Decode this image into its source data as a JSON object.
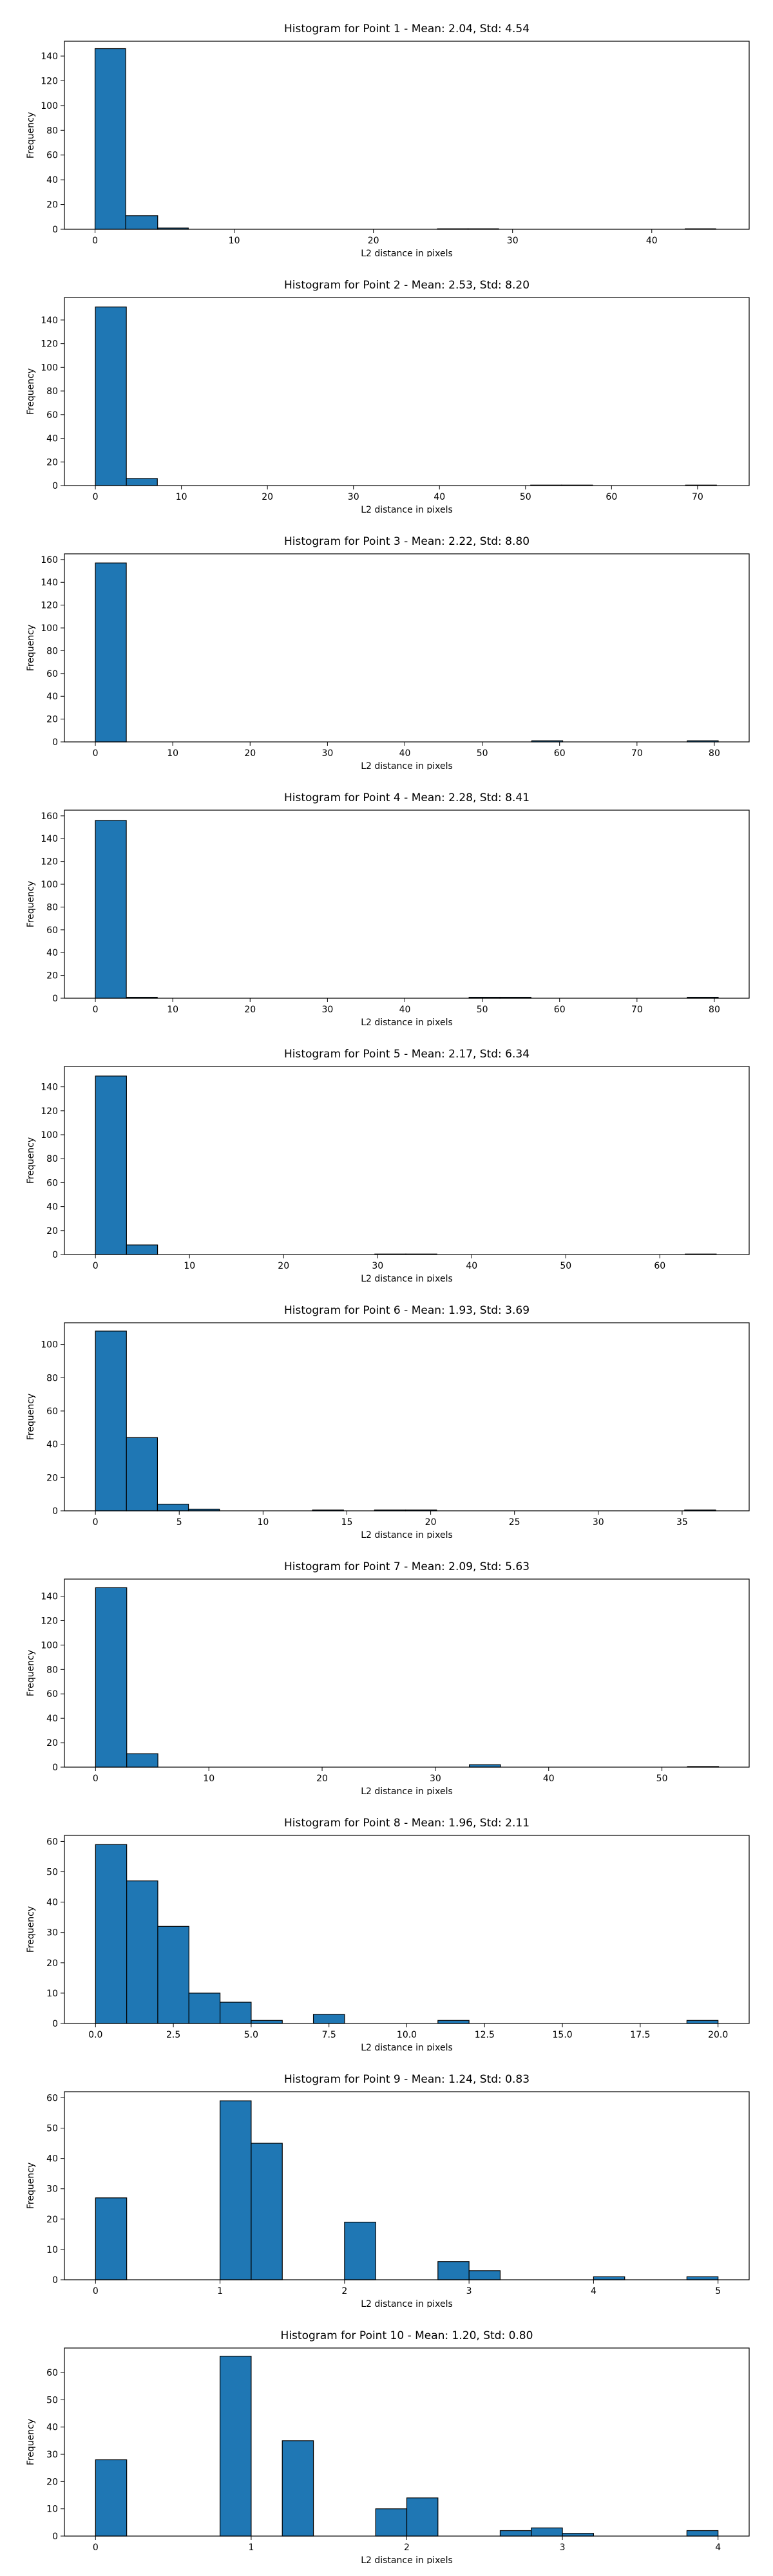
{
  "style": {
    "bar_color": "#1f77b4",
    "edge_color": "#000000"
  },
  "chart_data": [
    {
      "type": "bar",
      "title": "Histogram for Point 1 - Mean: 2.04, Std: 4.54",
      "xlabel": "L2 distance in pixels",
      "ylabel": "Frequency",
      "xlim": [
        -2.2,
        47.0
      ],
      "ylim": [
        0,
        152
      ],
      "xticks": [
        0,
        10,
        20,
        30,
        40
      ],
      "yticks": [
        0,
        20,
        40,
        60,
        80,
        100,
        120,
        140
      ],
      "bins": [
        {
          "x0": 0.0,
          "x1": 2.2,
          "count": 146
        },
        {
          "x0": 2.2,
          "x1": 4.5,
          "count": 11
        },
        {
          "x0": 4.5,
          "x1": 6.7,
          "count": 1
        },
        {
          "x0": 24.6,
          "x1": 26.8,
          "count": 0.4
        },
        {
          "x0": 26.8,
          "x1": 29.0,
          "count": 0.4
        },
        {
          "x0": 42.4,
          "x1": 44.6,
          "count": 0.4
        }
      ]
    },
    {
      "type": "bar",
      "title": "Histogram for Point 2 - Mean: 2.53, Std: 8.20",
      "xlabel": "L2 distance in pixels",
      "ylabel": "Frequency",
      "xlim": [
        -3.6,
        76.0
      ],
      "ylim": [
        0,
        159
      ],
      "xticks": [
        0,
        10,
        20,
        30,
        40,
        50,
        60,
        70
      ],
      "yticks": [
        0,
        20,
        40,
        60,
        80,
        100,
        120,
        140
      ],
      "bins": [
        {
          "x0": 0.0,
          "x1": 3.6,
          "count": 151
        },
        {
          "x0": 3.6,
          "x1": 7.2,
          "count": 6
        },
        {
          "x0": 50.6,
          "x1": 54.2,
          "count": 0.4
        },
        {
          "x0": 54.2,
          "x1": 57.8,
          "count": 0.4
        },
        {
          "x0": 68.6,
          "x1": 72.2,
          "count": 0.4
        }
      ]
    },
    {
      "type": "bar",
      "title": "Histogram for Point 3 - Mean: 2.22, Std: 8.80",
      "xlabel": "L2 distance in pixels",
      "ylabel": "Frequency",
      "xlim": [
        -4.0,
        84.5
      ],
      "ylim": [
        0,
        165
      ],
      "xticks": [
        0,
        10,
        20,
        30,
        40,
        50,
        60,
        70,
        80
      ],
      "yticks": [
        0,
        20,
        40,
        60,
        80,
        100,
        120,
        140,
        160
      ],
      "bins": [
        {
          "x0": 0.0,
          "x1": 4.0,
          "count": 157
        },
        {
          "x0": 56.4,
          "x1": 60.4,
          "count": 1
        },
        {
          "x0": 76.5,
          "x1": 80.5,
          "count": 1
        }
      ]
    },
    {
      "type": "bar",
      "title": "Histogram for Point 4 - Mean: 2.28, Std: 8.41",
      "xlabel": "L2 distance in pixels",
      "ylabel": "Frequency",
      "xlim": [
        -4.0,
        84.5
      ],
      "ylim": [
        0,
        165
      ],
      "xticks": [
        0,
        10,
        20,
        30,
        40,
        50,
        60,
        70,
        80
      ],
      "yticks": [
        0,
        20,
        40,
        60,
        80,
        100,
        120,
        140,
        160
      ],
      "bins": [
        {
          "x0": 0.0,
          "x1": 4.0,
          "count": 156
        },
        {
          "x0": 4.0,
          "x1": 8.0,
          "count": 0.8
        },
        {
          "x0": 48.3,
          "x1": 52.3,
          "count": 0.8
        },
        {
          "x0": 52.3,
          "x1": 56.3,
          "count": 0.8
        },
        {
          "x0": 76.5,
          "x1": 80.5,
          "count": 0.8
        }
      ]
    },
    {
      "type": "bar",
      "title": "Histogram for Point 5 - Mean: 2.17, Std: 6.34",
      "xlabel": "L2 distance in pixels",
      "ylabel": "Frequency",
      "xlim": [
        -3.3,
        69.5
      ],
      "ylim": [
        0,
        157
      ],
      "xticks": [
        0,
        10,
        20,
        30,
        40,
        50,
        60
      ],
      "yticks": [
        0,
        20,
        40,
        60,
        80,
        100,
        120,
        140
      ],
      "bins": [
        {
          "x0": 0.0,
          "x1": 3.3,
          "count": 149
        },
        {
          "x0": 3.3,
          "x1": 6.6,
          "count": 8
        },
        {
          "x0": 29.7,
          "x1": 33.0,
          "count": 0.4
        },
        {
          "x0": 33.0,
          "x1": 36.3,
          "count": 0.4
        },
        {
          "x0": 62.7,
          "x1": 66.0,
          "count": 0.4
        }
      ]
    },
    {
      "type": "bar",
      "title": "Histogram for Point 6 - Mean: 1.93, Std: 3.69",
      "xlabel": "L2 distance in pixels",
      "ylabel": "Frequency",
      "xlim": [
        -1.85,
        39.0
      ],
      "ylim": [
        0,
        113
      ],
      "xticks": [
        0,
        5,
        10,
        15,
        20,
        25,
        30,
        35
      ],
      "yticks": [
        0,
        20,
        40,
        60,
        80,
        100
      ],
      "bins": [
        {
          "x0": 0.0,
          "x1": 1.85,
          "count": 108
        },
        {
          "x0": 1.85,
          "x1": 3.7,
          "count": 44
        },
        {
          "x0": 3.7,
          "x1": 5.55,
          "count": 4
        },
        {
          "x0": 5.55,
          "x1": 7.4,
          "count": 1
        },
        {
          "x0": 12.95,
          "x1": 14.8,
          "count": 0.5
        },
        {
          "x0": 16.65,
          "x1": 18.5,
          "count": 0.5
        },
        {
          "x0": 18.5,
          "x1": 20.35,
          "count": 0.5
        },
        {
          "x0": 35.15,
          "x1": 37.0,
          "count": 0.5
        }
      ]
    },
    {
      "type": "bar",
      "title": "Histogram for Point 7 - Mean: 2.09, Std: 5.63",
      "xlabel": "L2 distance in pixels",
      "ylabel": "Frequency",
      "xlim": [
        -2.75,
        57.7
      ],
      "ylim": [
        0,
        154
      ],
      "xticks": [
        0,
        10,
        20,
        30,
        40,
        50
      ],
      "yticks": [
        0,
        20,
        40,
        60,
        80,
        100,
        120,
        140
      ],
      "bins": [
        {
          "x0": 0.0,
          "x1": 2.75,
          "count": 147
        },
        {
          "x0": 2.75,
          "x1": 5.5,
          "count": 11
        },
        {
          "x0": 33.0,
          "x1": 35.75,
          "count": 2
        },
        {
          "x0": 52.25,
          "x1": 55.0,
          "count": 0.5
        }
      ]
    },
    {
      "type": "bar",
      "title": "Histogram for Point 8 - Mean: 1.96, Std: 2.11",
      "xlabel": "L2 distance in pixels",
      "ylabel": "Frequency",
      "xlim": [
        -1.0,
        21.0
      ],
      "ylim": [
        0,
        62
      ],
      "xticks": [
        0.0,
        2.5,
        5.0,
        7.5,
        10.0,
        12.5,
        15.0,
        17.5,
        20.0
      ],
      "yticks": [
        0,
        10,
        20,
        30,
        40,
        50,
        60
      ],
      "bins": [
        {
          "x0": 0.0,
          "x1": 1.0,
          "count": 59
        },
        {
          "x0": 1.0,
          "x1": 2.0,
          "count": 47
        },
        {
          "x0": 2.0,
          "x1": 3.0,
          "count": 32
        },
        {
          "x0": 3.0,
          "x1": 4.0,
          "count": 10
        },
        {
          "x0": 4.0,
          "x1": 5.0,
          "count": 7
        },
        {
          "x0": 5.0,
          "x1": 6.0,
          "count": 1
        },
        {
          "x0": 7.0,
          "x1": 8.0,
          "count": 3
        },
        {
          "x0": 11.0,
          "x1": 12.0,
          "count": 1
        },
        {
          "x0": 19.0,
          "x1": 20.0,
          "count": 1
        }
      ]
    },
    {
      "type": "bar",
      "title": "Histogram for Point 9 - Mean: 1.24, Std: 0.83",
      "xlabel": "L2 distance in pixels",
      "ylabel": "Frequency",
      "xlim": [
        -0.25,
        5.25
      ],
      "ylim": [
        0,
        62
      ],
      "xticks": [
        0,
        1,
        2,
        3,
        4,
        5
      ],
      "yticks": [
        0,
        10,
        20,
        30,
        40,
        50,
        60
      ],
      "bins": [
        {
          "x0": 0.0,
          "x1": 0.25,
          "count": 27
        },
        {
          "x0": 1.0,
          "x1": 1.25,
          "count": 59
        },
        {
          "x0": 1.25,
          "x1": 1.5,
          "count": 45
        },
        {
          "x0": 2.0,
          "x1": 2.25,
          "count": 19
        },
        {
          "x0": 2.75,
          "x1": 3.0,
          "count": 6
        },
        {
          "x0": 3.0,
          "x1": 3.25,
          "count": 3
        },
        {
          "x0": 4.0,
          "x1": 4.25,
          "count": 1
        },
        {
          "x0": 4.75,
          "x1": 5.0,
          "count": 1
        }
      ]
    },
    {
      "type": "bar",
      "title": "Histogram for Point 10 - Mean: 1.20, Std: 0.80",
      "xlabel": "L2 distance in pixels",
      "ylabel": "Frequency",
      "xlim": [
        -0.2,
        4.2
      ],
      "ylim": [
        0,
        69
      ],
      "xticks": [
        0,
        1,
        2,
        3,
        4
      ],
      "yticks": [
        0,
        10,
        20,
        30,
        40,
        50,
        60
      ],
      "bins": [
        {
          "x0": 0.0,
          "x1": 0.2,
          "count": 28
        },
        {
          "x0": 0.8,
          "x1": 1.0,
          "count": 66
        },
        {
          "x0": 1.2,
          "x1": 1.4,
          "count": 35
        },
        {
          "x0": 1.8,
          "x1": 2.0,
          "count": 10
        },
        {
          "x0": 2.0,
          "x1": 2.2,
          "count": 14
        },
        {
          "x0": 2.6,
          "x1": 2.8,
          "count": 2
        },
        {
          "x0": 2.8,
          "x1": 3.0,
          "count": 3
        },
        {
          "x0": 3.0,
          "x1": 3.2,
          "count": 1
        },
        {
          "x0": 3.8,
          "x1": 4.0,
          "count": 2
        }
      ]
    }
  ]
}
